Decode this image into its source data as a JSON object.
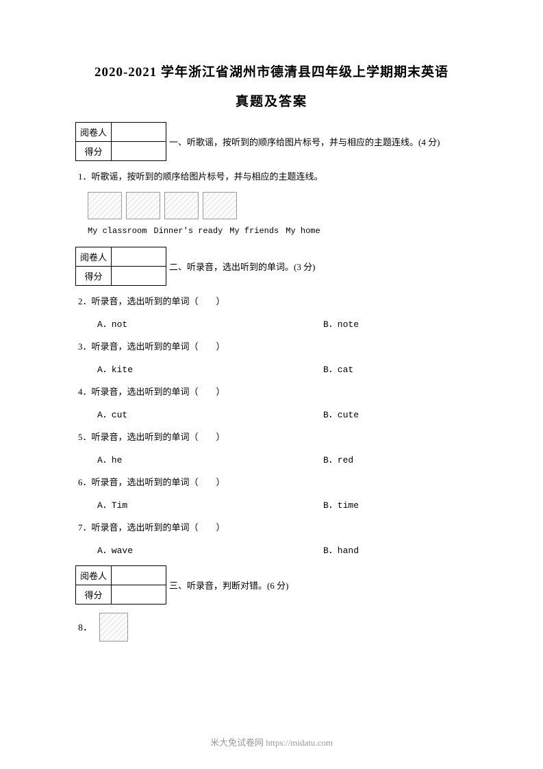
{
  "header": {
    "title_main": "2020-2021 学年浙江省湖州市德清县四年级上学期期末英语",
    "title_sub": "真题及答案"
  },
  "score_box": {
    "row1_label": "阅卷人",
    "row2_label": "得分"
  },
  "section1": {
    "heading": "一、听歌谣，按听到的顺序给图片标号，并与相应的主题连线。(4 分)",
    "q1_text": "1．听歌谣，按听到的顺序给图片标号，并与相应的主题连线。",
    "labels": [
      "My classroom",
      "Dinner's ready",
      "My friends",
      "My home"
    ]
  },
  "section2": {
    "heading": "二、听录音，选出听到的单词。(3 分)",
    "questions": [
      {
        "num": "2",
        "stem": "听录音，选出听到的单词（　　）",
        "a": "A．not",
        "b": "B．note"
      },
      {
        "num": "3",
        "stem": "听录音，选出听到的单词（　　）",
        "a": "A．kite",
        "b": "B．cat"
      },
      {
        "num": "4",
        "stem": "听录音，选出听到的单词（　　）",
        "a": "A．cut",
        "b": "B．cute"
      },
      {
        "num": "5",
        "stem": "听录音，选出听到的单词（　　）",
        "a": "A．he",
        "b": "B．red"
      },
      {
        "num": "6",
        "stem": "听录音，选出听到的单词（　　）",
        "a": "A．Tim",
        "b": "B．time"
      },
      {
        "num": "7",
        "stem": "听录音，选出听到的单词（　　）",
        "a": "A．wave",
        "b": "B．hand"
      }
    ]
  },
  "section3": {
    "heading": "三、听录音，判断对错。(6 分)",
    "q8_num": "8．"
  },
  "footer": {
    "text": "米大免试卷网 https://midatu.com"
  }
}
